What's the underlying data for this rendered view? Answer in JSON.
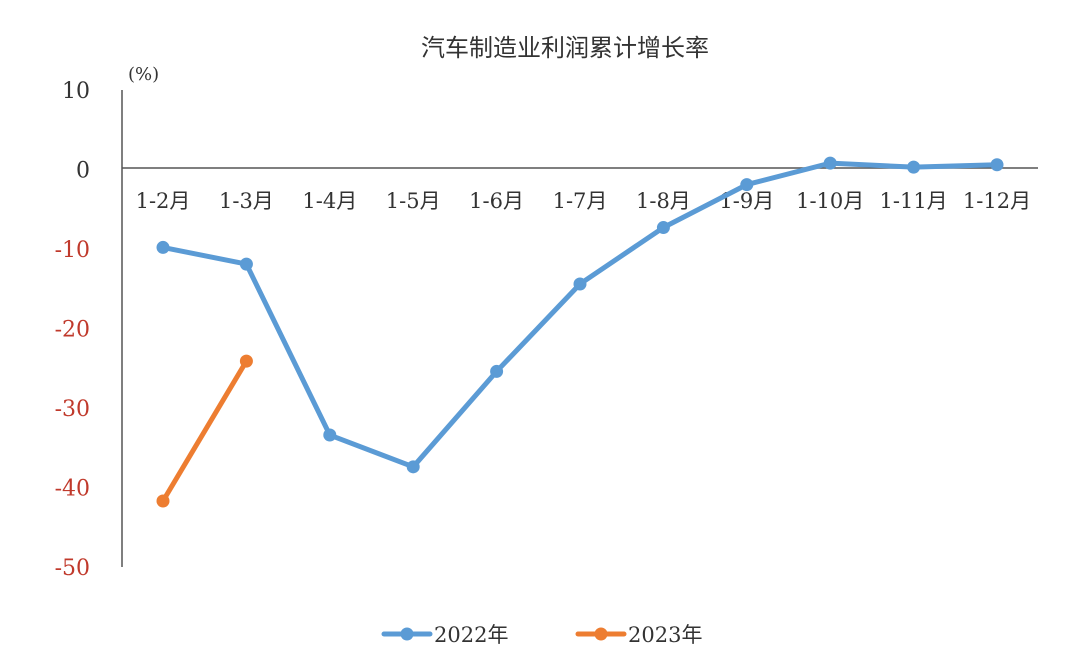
{
  "chart_data": {
    "type": "line",
    "title": "汽车制造业利润累计增长率",
    "unit_label": "(%)",
    "categories": [
      "1-2月",
      "1-3月",
      "1-4月",
      "1-5月",
      "1-6月",
      "1-7月",
      "1-8月",
      "1-9月",
      "1-10月",
      "1-11月",
      "1-12月"
    ],
    "y_ticks": [
      "10",
      "0",
      "-10",
      "-20",
      "-30",
      "-40",
      "-50"
    ],
    "y_tick_values": [
      10,
      0,
      -10,
      -20,
      -30,
      -40,
      -50
    ],
    "ylim": [
      -50,
      10
    ],
    "grid": false,
    "legend_position": "bottom",
    "series": [
      {
        "name": "2022年",
        "color": "#5B9BD5",
        "values": [
          -9.8,
          -11.9,
          -33.4,
          -37.4,
          -25.4,
          -14.4,
          -7.3,
          -1.9,
          0.8,
          0.3,
          0.6
        ]
      },
      {
        "name": "2023年",
        "color": "#ED7D31",
        "values": [
          -41.7,
          -24.1,
          null,
          null,
          null,
          null,
          null,
          null,
          null,
          null,
          null
        ]
      }
    ],
    "colors": {
      "positive_tick": "#333333",
      "negative_tick": "#C0392B",
      "axis": "#555555"
    }
  }
}
